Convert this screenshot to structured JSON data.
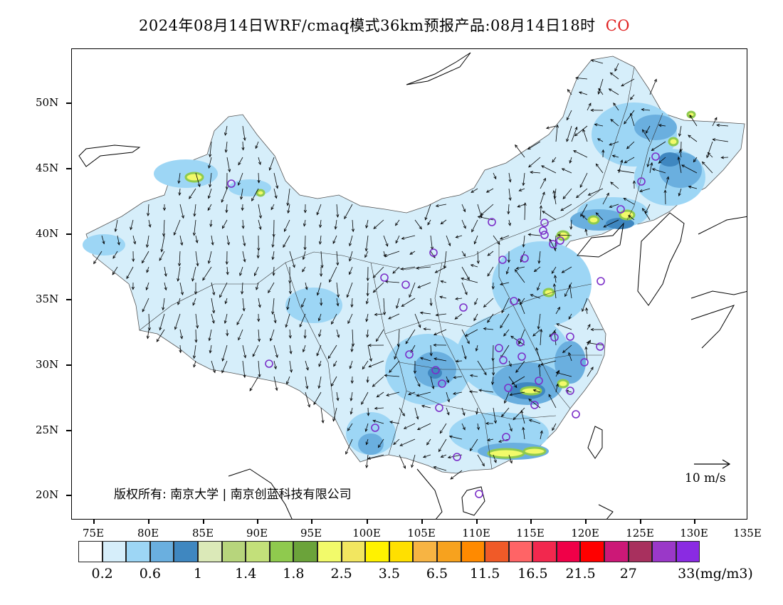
{
  "title": {
    "main": "2024年08月14日WRF/cmaq模式36km预报产品:08月14日18时",
    "species": "CO",
    "species_color": "#e02020"
  },
  "axes": {
    "y_labels": [
      "50N",
      "45N",
      "40N",
      "35N",
      "30N",
      "25N",
      "20N"
    ],
    "x_labels": [
      "75E",
      "80E",
      "85E",
      "90E",
      "95E",
      "100E",
      "105E",
      "110E",
      "115E",
      "120E",
      "125E",
      "130E",
      "135E"
    ]
  },
  "copyright": "版权所有: 南京大学 | 南京创蓝科技有限公司",
  "wind_scale_label": "10 m/s",
  "colorbar": {
    "colors": [
      "#ffffff",
      "#d6eefa",
      "#9dd6f5",
      "#6aafdf",
      "#3f87c0",
      "#dbe9b8",
      "#b7d57c",
      "#c3e07a",
      "#8fca4e",
      "#6ba33a",
      "#f2fa6a",
      "#f2e660",
      "#fff200",
      "#ffe000",
      "#f7b443",
      "#f7a21e",
      "#ff8a00",
      "#f05a28",
      "#ff6466",
      "#f2284e",
      "#f00048",
      "#ff0000",
      "#cc1877",
      "#a8305e",
      "#9a38c8",
      "#8a2be2"
    ],
    "labels": [
      "0.2",
      "0.6",
      "1",
      "1.4",
      "1.8",
      "2.5",
      "3.5",
      "6.5",
      "11.5",
      "16.5",
      "21.5",
      "27",
      "33(mg/m3)"
    ]
  },
  "stations": 40
}
